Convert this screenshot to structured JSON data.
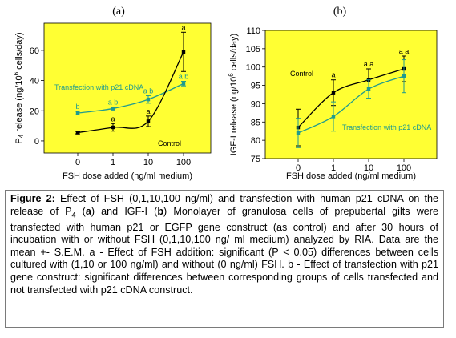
{
  "chart_data": [
    {
      "type": "line",
      "panel_label": "(a)",
      "ylabel_main": "P",
      "ylabel_sub": "4",
      "ylabel_rest": " release (ng/10",
      "ylabel_sup": "6",
      "ylabel_end": " cells/day)",
      "xlabel": "FSH dose added (ng/ml medium)",
      "categories": [
        "0",
        "1",
        "10",
        "100"
      ],
      "yticks": [
        0,
        20,
        40,
        60
      ],
      "ylim": [
        -8,
        78
      ],
      "grid": false,
      "series": [
        {
          "name": "Transfection with p21 cDNA",
          "color": "#1f9b8f",
          "values": [
            18.5,
            21.5,
            27.5,
            38
          ],
          "errors": [
            1.2,
            1.0,
            2.5,
            1.5
          ],
          "sig_labels": [
            "b",
            "a b",
            "a b",
            "a b"
          ]
        },
        {
          "name": "Control",
          "color": "#000000",
          "values": [
            5.5,
            9.0,
            13.0,
            59.0
          ],
          "errors": [
            0.8,
            2.5,
            3.5,
            13.0
          ],
          "sig_labels": [
            "",
            "a",
            "a",
            "a"
          ]
        }
      ]
    },
    {
      "type": "line",
      "panel_label": "(b)",
      "ylabel_main": "IGF-I release (ng/10",
      "ylabel_sup": "6",
      "ylabel_end": " cells/day)",
      "xlabel": "FSH dose added (ng/ml medium)",
      "categories": [
        "0",
        "1",
        "10",
        "100"
      ],
      "yticks": [
        75,
        80,
        85,
        90,
        95,
        100,
        105,
        110
      ],
      "ylim": [
        75,
        110
      ],
      "grid": false,
      "series": [
        {
          "name": "Control",
          "color": "#000000",
          "values": [
            83.5,
            93.0,
            96.5,
            99.5
          ],
          "errors": [
            5.0,
            3.5,
            3.0,
            3.5
          ],
          "sig_labels": [
            "",
            "a",
            "a a",
            "a a"
          ]
        },
        {
          "name": "Transfection with p21 cDNA",
          "color": "#1f9b8f",
          "values": [
            82.0,
            86.5,
            94.0,
            97.5
          ],
          "errors": [
            4.0,
            4.0,
            2.5,
            4.5
          ],
          "sig_labels": [
            "",
            "",
            "",
            ""
          ]
        }
      ]
    }
  ],
  "caption": {
    "label": "Figure 2:",
    "text_1": " Effect of FSH (0,1,10,100 ng/ml) and transfection with human p21 cDNA on the release of P",
    "sub": "4",
    "text_2": " (",
    "bold_a": "a",
    "text_3": ") and IGF-I (",
    "bold_b": "b",
    "text_4": ") Monolayer of granulosa cells of prepubertal gilts were transfected with human p21 or EGFP gene construct (as control) and after 30 hours of incubation with or without FSH (0,1,10,100 ng/ ml medium) analyzed by RIA. Data are the mean +- S.E.M. a - Effect of FSH addition: significant (P < 0.05) differences between cells cultured with (1,10 or 100 ng/ml) and without (0 ng/ml) FSH. b - Effect of transfection with p21 gene construct: significant differences between corresponding groups of cells transfected and not transfected with p21 cDNA construct."
  },
  "colors": {
    "plot_bg": "#ffff33",
    "control": "#000000",
    "p21": "#1f9b8f"
  }
}
